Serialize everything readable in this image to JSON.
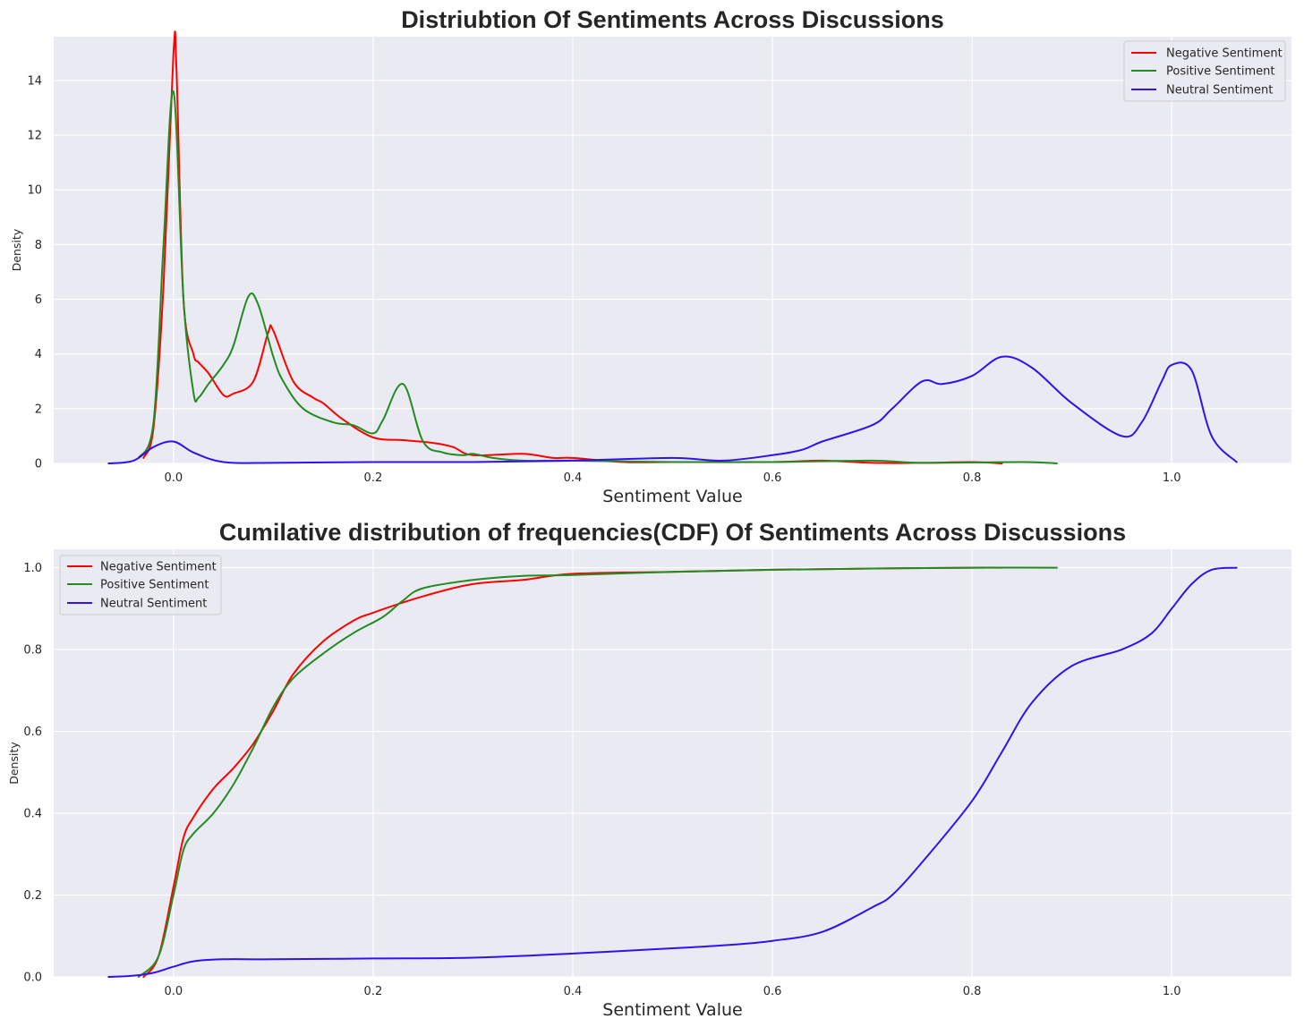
{
  "chart_data": [
    {
      "type": "line",
      "title": "Distriubtion Of Sentiments Across Discussions",
      "xlabel": "Sentiment Value",
      "ylabel": "Density",
      "xlim": [
        -0.12,
        1.12
      ],
      "ylim": [
        0,
        15.6
      ],
      "xticks": [
        0.0,
        0.2,
        0.4,
        0.6,
        0.8,
        1.0
      ],
      "xtick_labels": [
        "0.0",
        "0.2",
        "0.4",
        "0.6",
        "0.8",
        "1.0"
      ],
      "yticks": [
        0,
        2,
        4,
        6,
        8,
        10,
        12,
        14
      ],
      "ytick_labels": [
        "0",
        "2",
        "4",
        "6",
        "8",
        "10",
        "12",
        "14"
      ],
      "grid": true,
      "legend_position": "top-right",
      "series": [
        {
          "name": "Negative Sentiment",
          "color": "#ff0000",
          "x": [
            -0.03,
            -0.02,
            -0.01,
            0.0,
            0.003,
            0.01,
            0.02,
            0.025,
            0.035,
            0.05,
            0.06,
            0.08,
            0.095,
            0.1,
            0.12,
            0.14,
            0.15,
            0.17,
            0.2,
            0.23,
            0.26,
            0.28,
            0.3,
            0.35,
            0.38,
            0.4,
            0.45,
            0.5,
            0.6,
            0.65,
            0.7,
            0.75,
            0.8,
            0.83
          ],
          "y": [
            0.2,
            1.3,
            6.5,
            15.0,
            14.4,
            6.0,
            4.0,
            3.7,
            3.3,
            2.5,
            2.55,
            3.0,
            4.8,
            4.85,
            3.0,
            2.4,
            2.2,
            1.6,
            0.95,
            0.85,
            0.75,
            0.6,
            0.3,
            0.35,
            0.2,
            0.2,
            0.05,
            0.05,
            0.05,
            0.1,
            0.02,
            0.02,
            0.05,
            0.0
          ]
        },
        {
          "name": "Positive Sentiment",
          "color": "#228b22",
          "x": [
            -0.035,
            -0.02,
            -0.01,
            0.0,
            0.01,
            0.02,
            0.025,
            0.035,
            0.05,
            0.06,
            0.075,
            0.085,
            0.1,
            0.11,
            0.13,
            0.16,
            0.18,
            0.2,
            0.21,
            0.23,
            0.25,
            0.27,
            0.29,
            0.3,
            0.32,
            0.35,
            0.4,
            0.5,
            0.6,
            0.7,
            0.75,
            0.85,
            0.885
          ],
          "y": [
            0.2,
            1.5,
            8.0,
            13.6,
            6.0,
            2.6,
            2.4,
            2.9,
            3.6,
            4.3,
            6.1,
            5.8,
            3.9,
            3.0,
            2.0,
            1.5,
            1.4,
            1.1,
            1.6,
            2.9,
            0.8,
            0.4,
            0.3,
            0.35,
            0.2,
            0.1,
            0.1,
            0.05,
            0.05,
            0.1,
            0.02,
            0.05,
            0.0
          ]
        },
        {
          "name": "Neutral Sentiment",
          "color": "#3311ee",
          "x": [
            -0.065,
            -0.04,
            -0.02,
            0.0,
            0.02,
            0.05,
            0.1,
            0.2,
            0.3,
            0.4,
            0.5,
            0.55,
            0.6,
            0.63,
            0.65,
            0.7,
            0.72,
            0.75,
            0.77,
            0.8,
            0.83,
            0.86,
            0.9,
            0.95,
            0.97,
            0.99,
            1.0,
            1.02,
            1.04,
            1.065
          ],
          "y": [
            0.0,
            0.1,
            0.6,
            0.8,
            0.4,
            0.05,
            0.02,
            0.05,
            0.05,
            0.1,
            0.2,
            0.1,
            0.3,
            0.5,
            0.8,
            1.4,
            2.0,
            3.0,
            2.9,
            3.2,
            3.9,
            3.5,
            2.2,
            1.0,
            1.5,
            3.0,
            3.6,
            3.4,
            1.0,
            0.05
          ]
        }
      ]
    },
    {
      "type": "line",
      "title": "Cumilative distribution of frequencies(CDF) Of Sentiments Across Discussions",
      "xlabel": "Sentiment Value",
      "ylabel": "Density",
      "xlim": [
        -0.12,
        1.12
      ],
      "ylim": [
        0,
        1.045
      ],
      "xticks": [
        0.0,
        0.2,
        0.4,
        0.6,
        0.8,
        1.0
      ],
      "xtick_labels": [
        "0.0",
        "0.2",
        "0.4",
        "0.6",
        "0.8",
        "1.0"
      ],
      "yticks": [
        0.0,
        0.2,
        0.4,
        0.6,
        0.8,
        1.0
      ],
      "ytick_labels": [
        "0.0",
        "0.2",
        "0.4",
        "0.6",
        "0.8",
        "1.0"
      ],
      "grid": true,
      "legend_position": "top-left",
      "series": [
        {
          "name": "Negative Sentiment",
          "color": "#ff0000",
          "x": [
            -0.03,
            -0.015,
            0.0,
            0.01,
            0.02,
            0.04,
            0.06,
            0.08,
            0.1,
            0.12,
            0.15,
            0.18,
            0.2,
            0.25,
            0.3,
            0.35,
            0.4,
            0.5,
            0.6,
            0.7,
            0.8,
            0.83
          ],
          "y": [
            0.0,
            0.05,
            0.22,
            0.34,
            0.39,
            0.46,
            0.51,
            0.57,
            0.65,
            0.74,
            0.82,
            0.87,
            0.89,
            0.93,
            0.96,
            0.97,
            0.985,
            0.99,
            0.995,
            0.998,
            1.0,
            1.0
          ]
        },
        {
          "name": "Positive Sentiment",
          "color": "#228b22",
          "x": [
            -0.035,
            -0.015,
            0.0,
            0.01,
            0.02,
            0.04,
            0.06,
            0.08,
            0.1,
            0.12,
            0.15,
            0.18,
            0.21,
            0.23,
            0.25,
            0.3,
            0.35,
            0.4,
            0.5,
            0.6,
            0.7,
            0.8,
            0.885
          ],
          "y": [
            0.0,
            0.05,
            0.2,
            0.31,
            0.35,
            0.4,
            0.47,
            0.56,
            0.66,
            0.73,
            0.79,
            0.84,
            0.88,
            0.92,
            0.95,
            0.97,
            0.98,
            0.982,
            0.99,
            0.995,
            0.998,
            1.0,
            1.0
          ]
        },
        {
          "name": "Neutral Sentiment",
          "color": "#3311ee",
          "x": [
            -0.065,
            -0.04,
            -0.02,
            0.0,
            0.02,
            0.05,
            0.1,
            0.2,
            0.3,
            0.4,
            0.5,
            0.55,
            0.6,
            0.65,
            0.7,
            0.72,
            0.75,
            0.8,
            0.83,
            0.86,
            0.9,
            0.95,
            0.98,
            1.0,
            1.02,
            1.04,
            1.065
          ],
          "y": [
            0.0,
            0.003,
            0.01,
            0.025,
            0.038,
            0.043,
            0.043,
            0.045,
            0.047,
            0.057,
            0.07,
            0.077,
            0.088,
            0.11,
            0.17,
            0.2,
            0.28,
            0.43,
            0.55,
            0.67,
            0.76,
            0.8,
            0.84,
            0.9,
            0.96,
            0.995,
            1.0
          ]
        }
      ]
    }
  ]
}
